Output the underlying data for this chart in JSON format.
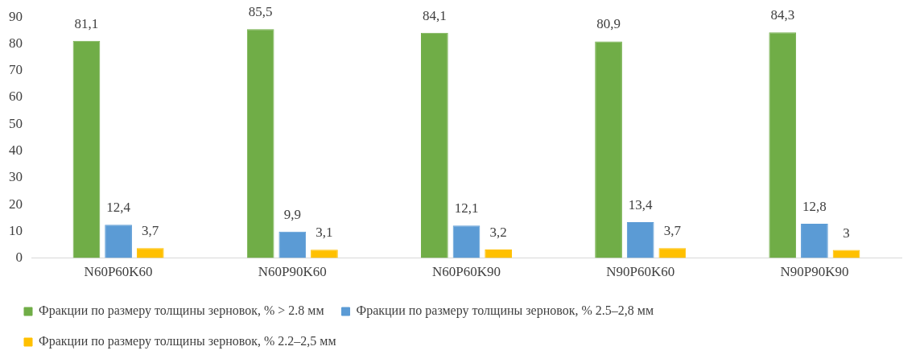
{
  "chart_data": {
    "type": "bar",
    "categories": [
      "N60P60K60",
      "N60P90K60",
      "N60P60K90",
      "N90P60K60",
      "N90P90K90"
    ],
    "series": [
      {
        "name": "Фракции по размеру толщины зерновок, % > 2.8 мм",
        "color": "#70ad47",
        "values": [
          81.1,
          85.5,
          84.1,
          80.9,
          84.3
        ],
        "value_labels": [
          "81,1",
          "85,5",
          "84,1",
          "80,9",
          "84,3"
        ]
      },
      {
        "name": "Фракции по размеру толщины зерновок, % 2.5–2,8 мм",
        "color": "#5b9bd5",
        "values": [
          12.4,
          9.9,
          12.1,
          13.4,
          12.8
        ],
        "value_labels": [
          "12,4",
          "9,9",
          "12,1",
          "13,4",
          "12,8"
        ]
      },
      {
        "name": "Фракции по размеру толщины зерновок, % 2.2–2,5 мм",
        "color": "#ffc000",
        "values": [
          3.7,
          3.1,
          3.2,
          3.7,
          3
        ],
        "value_labels": [
          "3,7",
          "3,1",
          "3,2",
          "3,7",
          "3"
        ]
      }
    ],
    "ylim": [
      0,
      90
    ],
    "yticks": [
      0,
      10,
      20,
      30,
      40,
      50,
      60,
      70,
      80,
      90
    ],
    "grid": false,
    "legend": "bottom"
  }
}
